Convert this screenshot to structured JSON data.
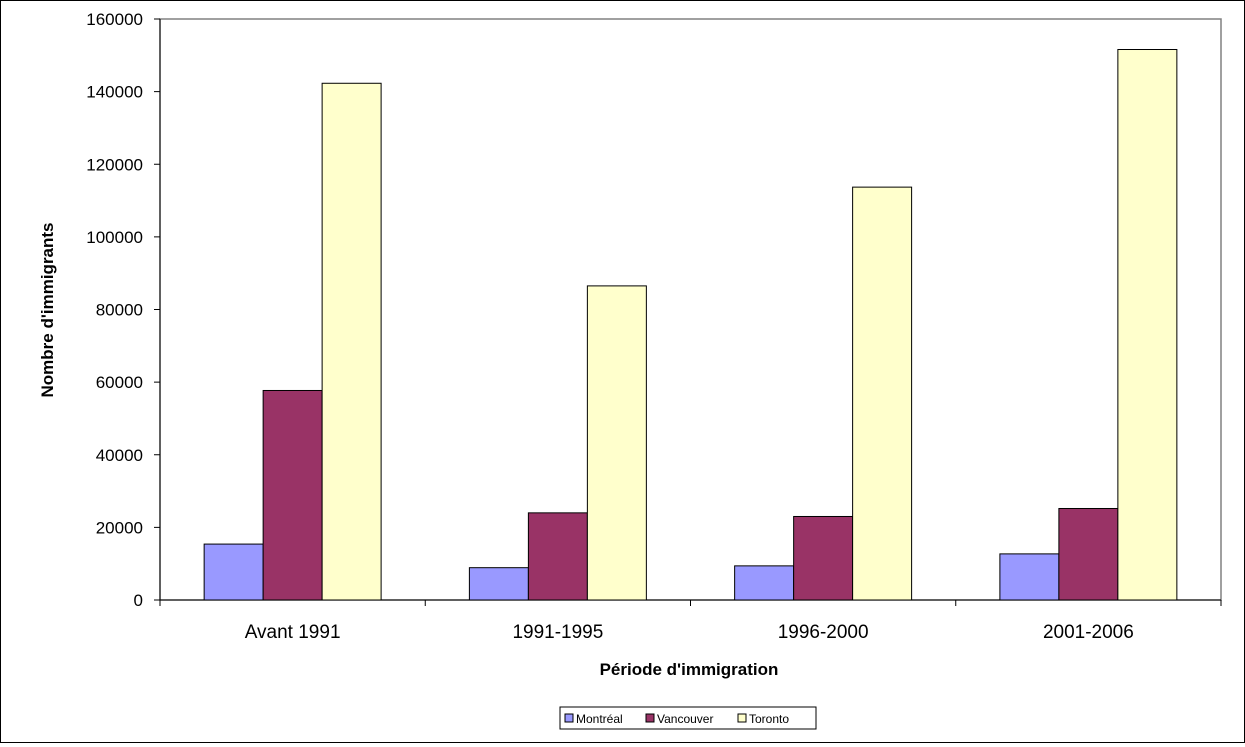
{
  "chart_data": {
    "type": "bar",
    "title": "",
    "xlabel": "Période d'immigration",
    "ylabel": "Nombre d'immigrants",
    "categories": [
      "Avant 1991",
      "1991-1995",
      "1996-2000",
      "2001-2006"
    ],
    "series": [
      {
        "name": "Montréal",
        "color": "#9999ff",
        "values": [
          15400,
          8900,
          9400,
          12700
        ]
      },
      {
        "name": "Vancouver",
        "color": "#993366",
        "values": [
          57700,
          24000,
          23000,
          25200
        ]
      },
      {
        "name": "Toronto",
        "color": "#ffffcc",
        "values": [
          142300,
          86500,
          113700,
          151600
        ]
      }
    ],
    "ylim": [
      0,
      160000
    ],
    "yticks": [
      0,
      20000,
      40000,
      60000,
      80000,
      100000,
      120000,
      140000,
      160000
    ],
    "grid": false,
    "legend_position": "bottom"
  }
}
